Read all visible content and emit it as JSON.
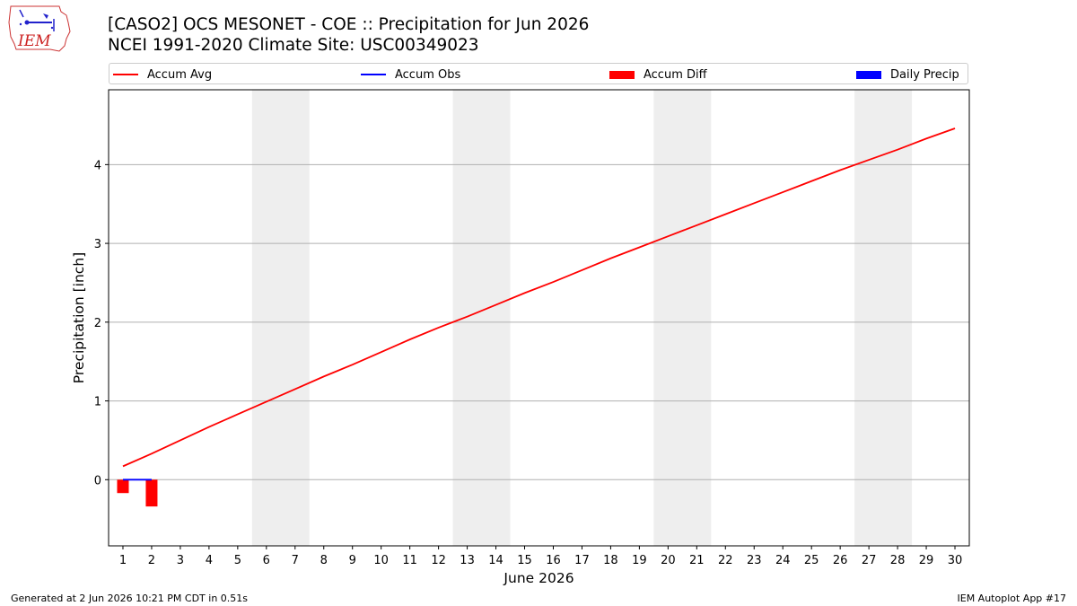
{
  "header": {
    "title_line1": "[CASO2] OCS MESONET - COE :: Precipitation for Jun 2026",
    "title_line2": "NCEI 1991-2020 Climate Site: USC00349023",
    "logo_text": "IEM"
  },
  "legend": [
    {
      "label": "Accum Avg",
      "color": "#ff0000",
      "kind": "line"
    },
    {
      "label": "Accum Obs",
      "color": "#0000ff",
      "kind": "line"
    },
    {
      "label": "Accum Diff",
      "color": "#ff0000",
      "kind": "box"
    },
    {
      "label": "Daily Precip",
      "color": "#0000ff",
      "kind": "box"
    }
  ],
  "chart_data": {
    "type": "bar",
    "xlabel": "June 2026",
    "ylabel": "Precipitation [inch]",
    "xlim": [
      0.5,
      30.5
    ],
    "ylim": [
      -0.84,
      4.95
    ],
    "x_ticks": [
      1,
      2,
      3,
      4,
      5,
      6,
      7,
      8,
      9,
      10,
      11,
      12,
      13,
      14,
      15,
      16,
      17,
      18,
      19,
      20,
      21,
      22,
      23,
      24,
      25,
      26,
      27,
      28,
      29,
      30
    ],
    "y_ticks": [
      0,
      1,
      2,
      3,
      4
    ],
    "grid": "y",
    "weekend_shading": [
      [
        5.5,
        7.5
      ],
      [
        12.5,
        14.5
      ],
      [
        19.5,
        21.5
      ],
      [
        26.5,
        28.5
      ]
    ],
    "shade_color": "#eeeeee",
    "series": [
      {
        "name": "Accum Avg",
        "type": "line",
        "color": "#ff0000",
        "x": [
          1,
          2,
          3,
          4,
          5,
          6,
          7,
          8,
          9,
          10,
          11,
          12,
          13,
          14,
          15,
          16,
          17,
          18,
          19,
          20,
          21,
          22,
          23,
          24,
          25,
          26,
          27,
          28,
          29,
          30
        ],
        "values": [
          0.17,
          0.33,
          0.5,
          0.67,
          0.83,
          0.99,
          1.15,
          1.31,
          1.46,
          1.62,
          1.78,
          1.93,
          2.07,
          2.22,
          2.37,
          2.51,
          2.66,
          2.81,
          2.95,
          3.09,
          3.23,
          3.37,
          3.51,
          3.65,
          3.79,
          3.93,
          4.06,
          4.19,
          4.33,
          4.46
        ]
      },
      {
        "name": "Accum Obs",
        "type": "line",
        "color": "#0000ff",
        "x": [
          1,
          2
        ],
        "values": [
          0.0,
          0.0
        ]
      },
      {
        "name": "Accum Diff",
        "type": "bar",
        "color": "#ff0000",
        "x": [
          1,
          2
        ],
        "values": [
          -0.17,
          -0.34
        ]
      },
      {
        "name": "Daily Precip",
        "type": "bar",
        "color": "#0000ff",
        "x": [
          1,
          2
        ],
        "values": [
          0.0,
          0.0
        ]
      }
    ]
  },
  "footer": {
    "generated": "Generated at 2 Jun 2026 10:21 PM CDT in 0.51s",
    "app": "IEM Autoplot App #17"
  }
}
